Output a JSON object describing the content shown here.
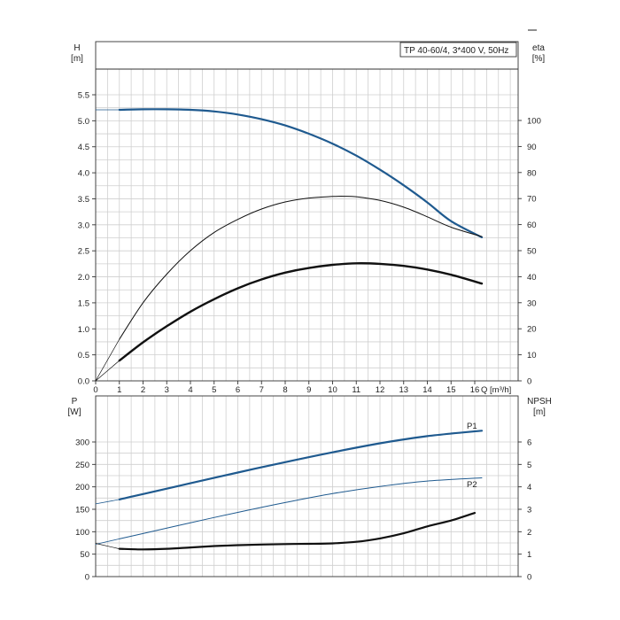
{
  "colors": {
    "blue": "#1f5a8f",
    "black": "#111111",
    "grid": "#cfcfcf"
  },
  "legend_box": "TP 40-60/4, 3*400 V, 50Hz",
  "chart_data": [
    {
      "type": "line",
      "panel": "head-efficiency",
      "left_axis": {
        "label_top": "H",
        "label_unit": "[m]",
        "ylim": [
          0,
          5.5
        ],
        "ticks": [
          "0.0",
          "0.5",
          "1.0",
          "1.5",
          "2.0",
          "2.5",
          "3.0",
          "3.5",
          "4.0",
          "4.5",
          "5.0",
          "5.5"
        ]
      },
      "right_axis": {
        "label_top": "eta",
        "label_unit": "[%]",
        "ylim": [
          0,
          100
        ],
        "ticks": [
          "0",
          "10",
          "20",
          "30",
          "40",
          "50",
          "60",
          "70",
          "80",
          "90",
          "100"
        ]
      },
      "x_axis": {
        "label": "Q [m³/h]",
        "xlim": [
          0,
          16
        ],
        "ticks": [
          "0",
          "1",
          "2",
          "3",
          "4",
          "5",
          "6",
          "7",
          "8",
          "9",
          "10",
          "11",
          "12",
          "13",
          "14",
          "15",
          "16"
        ]
      },
      "grid": true,
      "series": [
        {
          "key": "head",
          "axis": "left",
          "color": "blue",
          "width": 2.2,
          "x": [
            1,
            2,
            3,
            4,
            5,
            6,
            7,
            8,
            9,
            10,
            11,
            12,
            13,
            14,
            15,
            16.3
          ],
          "y": [
            5.21,
            5.22,
            5.22,
            5.21,
            5.18,
            5.12,
            5.03,
            4.91,
            4.75,
            4.56,
            4.33,
            4.06,
            3.76,
            3.43,
            3.07,
            2.76
          ]
        },
        {
          "key": "head-extrapolated",
          "axis": "left",
          "color": "blue",
          "width": 0.8,
          "x": [
            0,
            1
          ],
          "y": [
            5.21,
            5.21
          ]
        },
        {
          "key": "eta",
          "axis": "right",
          "color": "black",
          "width": 1.0,
          "x": [
            1,
            2,
            3,
            4,
            5,
            6,
            7,
            8,
            9,
            10,
            10.5,
            11,
            12,
            13,
            14,
            15,
            16.3
          ],
          "y": [
            16,
            30,
            41,
            50,
            57,
            62,
            66,
            68.7,
            70.2,
            70.8,
            70.9,
            70.7,
            69.3,
            66.7,
            63.0,
            59.0,
            55.4
          ]
        },
        {
          "key": "eta-extrapolated",
          "axis": "right",
          "color": "black",
          "width": 0.7,
          "x": [
            0,
            1
          ],
          "y": [
            0,
            16
          ]
        },
        {
          "key": "eta-thick",
          "axis": "left",
          "color": "black",
          "width": 2.4,
          "x": [
            1,
            2,
            3,
            4,
            5,
            6,
            7,
            8,
            9,
            10,
            11,
            12,
            13,
            14,
            15,
            16.3
          ],
          "y": [
            0.39,
            0.74,
            1.05,
            1.33,
            1.57,
            1.78,
            1.95,
            2.08,
            2.17,
            2.23,
            2.26,
            2.25,
            2.21,
            2.14,
            2.04,
            1.87
          ]
        },
        {
          "key": "eta-thick-extrapolated",
          "axis": "left",
          "color": "black",
          "width": 0.7,
          "x": [
            0,
            1
          ],
          "y": [
            0,
            0.39
          ]
        }
      ]
    },
    {
      "type": "line",
      "panel": "power-npsh",
      "left_axis": {
        "label_top": "P",
        "label_unit": "[W]",
        "ylim": [
          0,
          350
        ],
        "ticks": [
          "0",
          "50",
          "100",
          "150",
          "200",
          "250",
          "300"
        ]
      },
      "right_axis": {
        "label_top": "NPSH",
        "label_unit": "[m]",
        "ylim": [
          0,
          7
        ],
        "ticks": [
          "0",
          "1",
          "2",
          "3",
          "4",
          "5",
          "6"
        ]
      },
      "x_axis": {
        "xlim": [
          0,
          16
        ]
      },
      "grid": true,
      "series": [
        {
          "key": "p1",
          "name": "P1",
          "axis": "left",
          "color": "blue",
          "width": 2.2,
          "x": [
            1,
            2,
            4,
            6,
            8,
            10,
            12,
            14,
            16.3
          ],
          "y": [
            172,
            184,
            208,
            232,
            255,
            277,
            297,
            313,
            325
          ]
        },
        {
          "key": "p1-extrapolated",
          "axis": "left",
          "color": "blue",
          "width": 0.8,
          "x": [
            0,
            1
          ],
          "y": [
            162,
            172
          ]
        },
        {
          "key": "p2",
          "name": "P2",
          "axis": "left",
          "color": "blue",
          "width": 1.0,
          "x": [
            1,
            2,
            4,
            6,
            8,
            10,
            12,
            14,
            16.3
          ],
          "y": [
            84,
            96,
            120,
            143,
            165,
            185,
            201,
            213,
            220
          ]
        },
        {
          "key": "p2-extrapolated",
          "axis": "left",
          "color": "blue",
          "width": 0.8,
          "x": [
            0,
            1
          ],
          "y": [
            72,
            84
          ]
        },
        {
          "key": "npsh",
          "axis": "right",
          "color": "black",
          "width": 2.2,
          "x": [
            1,
            2,
            3,
            4,
            5,
            6,
            7,
            8,
            9,
            10,
            11,
            12,
            13,
            14,
            15,
            16
          ],
          "y": [
            1.24,
            1.21,
            1.24,
            1.3,
            1.36,
            1.4,
            1.43,
            1.45,
            1.46,
            1.48,
            1.55,
            1.7,
            1.93,
            2.24,
            2.5,
            2.84
          ]
        },
        {
          "key": "npsh-extrapolated",
          "axis": "right",
          "color": "black",
          "width": 0.7,
          "x": [
            0,
            1
          ],
          "y": [
            1.48,
            1.24
          ]
        }
      ]
    }
  ]
}
